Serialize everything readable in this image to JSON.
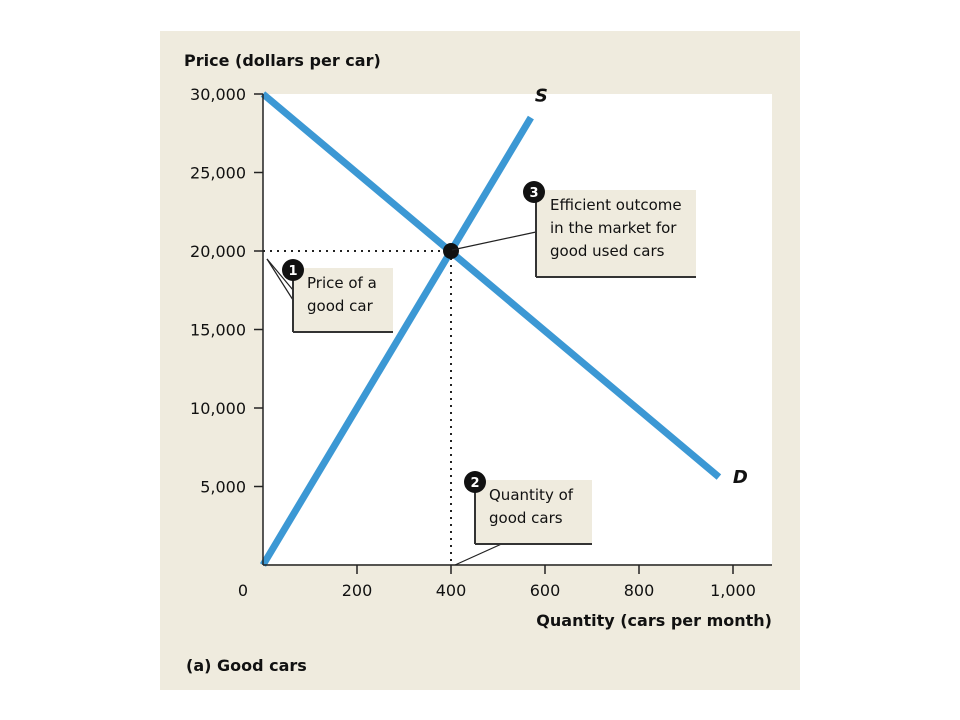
{
  "chart_data": {
    "type": "line",
    "title": "",
    "ylabel": "Price (dollars per car)",
    "xlabel": "Quantity (cars per month)",
    "caption": "(a) Good cars",
    "xlim": [
      0,
      1000
    ],
    "ylim": [
      0,
      30000
    ],
    "xticks": [
      0,
      200,
      400,
      600,
      800,
      1000
    ],
    "xtick_labels": [
      "0",
      "200",
      "400",
      "600",
      "800",
      "1,000"
    ],
    "yticks": [
      5000,
      10000,
      15000,
      20000,
      25000,
      30000
    ],
    "ytick_labels": [
      "5,000",
      "10,000",
      "15,000",
      "20,000",
      "25,000",
      "30,000"
    ],
    "series": [
      {
        "name": "S",
        "points": [
          [
            0,
            0
          ],
          [
            570,
            28500
          ]
        ],
        "color": "#3c98d4"
      },
      {
        "name": "D",
        "points": [
          [
            0,
            30000
          ],
          [
            970,
            5600
          ]
        ],
        "color": "#3c98d4"
      }
    ],
    "equilibrium": {
      "x": 400,
      "y": 20000
    },
    "annotations": [
      {
        "number": "1",
        "lines": [
          "Price of a",
          "good car"
        ]
      },
      {
        "number": "2",
        "lines": [
          "Quantity of",
          "good cars"
        ]
      },
      {
        "number": "3",
        "lines": [
          "Efficient outcome",
          "in the market for",
          "good used cars"
        ]
      }
    ],
    "grid": false,
    "colors": {
      "curve": "#3c98d4",
      "background": "#efebde",
      "plot_area": "#ffffff"
    }
  }
}
